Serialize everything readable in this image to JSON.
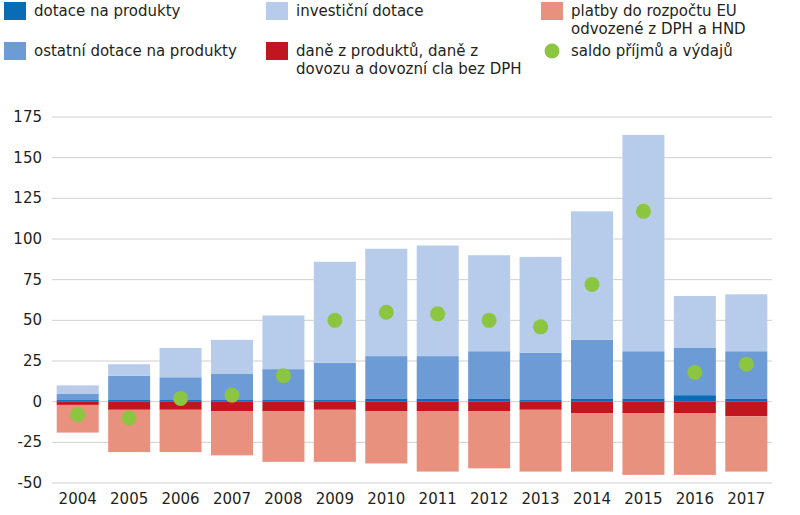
{
  "chart_data": {
    "type": "bar",
    "stacked": true,
    "grid": true,
    "categories": [
      "2004",
      "2005",
      "2006",
      "2007",
      "2008",
      "2009",
      "2010",
      "2011",
      "2012",
      "2013",
      "2014",
      "2015",
      "2016",
      "2017"
    ],
    "ylim": [
      -50,
      175
    ],
    "yticks": [
      -50,
      -25,
      0,
      25,
      50,
      75,
      100,
      125,
      150,
      175
    ],
    "series": [
      {
        "name": "dotace na produkty",
        "color": "#0b6cb6",
        "type": "bar",
        "values": [
          1,
          1,
          1,
          1,
          1,
          1,
          2,
          2,
          2,
          1,
          2,
          2,
          4,
          2
        ]
      },
      {
        "name": "investiční dotace",
        "color": "#b7cbea",
        "type": "bar",
        "values": [
          5,
          7,
          18,
          21,
          33,
          62,
          66,
          68,
          59,
          59,
          79,
          133,
          32,
          35
        ]
      },
      {
        "name": "platby do rozpočtu EU odvozené z DPH a HND",
        "color": "#e8917f",
        "type": "bar",
        "values": [
          -17,
          -26,
          -26,
          -27,
          -31,
          -32,
          -32,
          -37,
          -35,
          -38,
          -36,
          -38,
          -38,
          -34
        ]
      },
      {
        "name": "ostatní dotace na produkty",
        "color": "#6d9bd6",
        "type": "bar",
        "values": [
          4,
          15,
          14,
          16,
          19,
          23,
          26,
          26,
          29,
          29,
          36,
          29,
          29,
          29
        ]
      },
      {
        "name": "daně z produktů, daně z dovozu a dovozní cla bez DPH",
        "color": "#c1161f",
        "type": "bar",
        "values": [
          -2,
          -5,
          -5,
          -6,
          -6,
          -5,
          -6,
          -6,
          -6,
          -5,
          -7,
          -7,
          -7,
          -9
        ]
      },
      {
        "name": "saldo příjmů a výdajů",
        "color": "#8cc540",
        "type": "scatter",
        "marker": "circle",
        "values": [
          -8,
          -10,
          2,
          4,
          16,
          50,
          55,
          54,
          50,
          46,
          72,
          117,
          18,
          23
        ]
      }
    ]
  }
}
